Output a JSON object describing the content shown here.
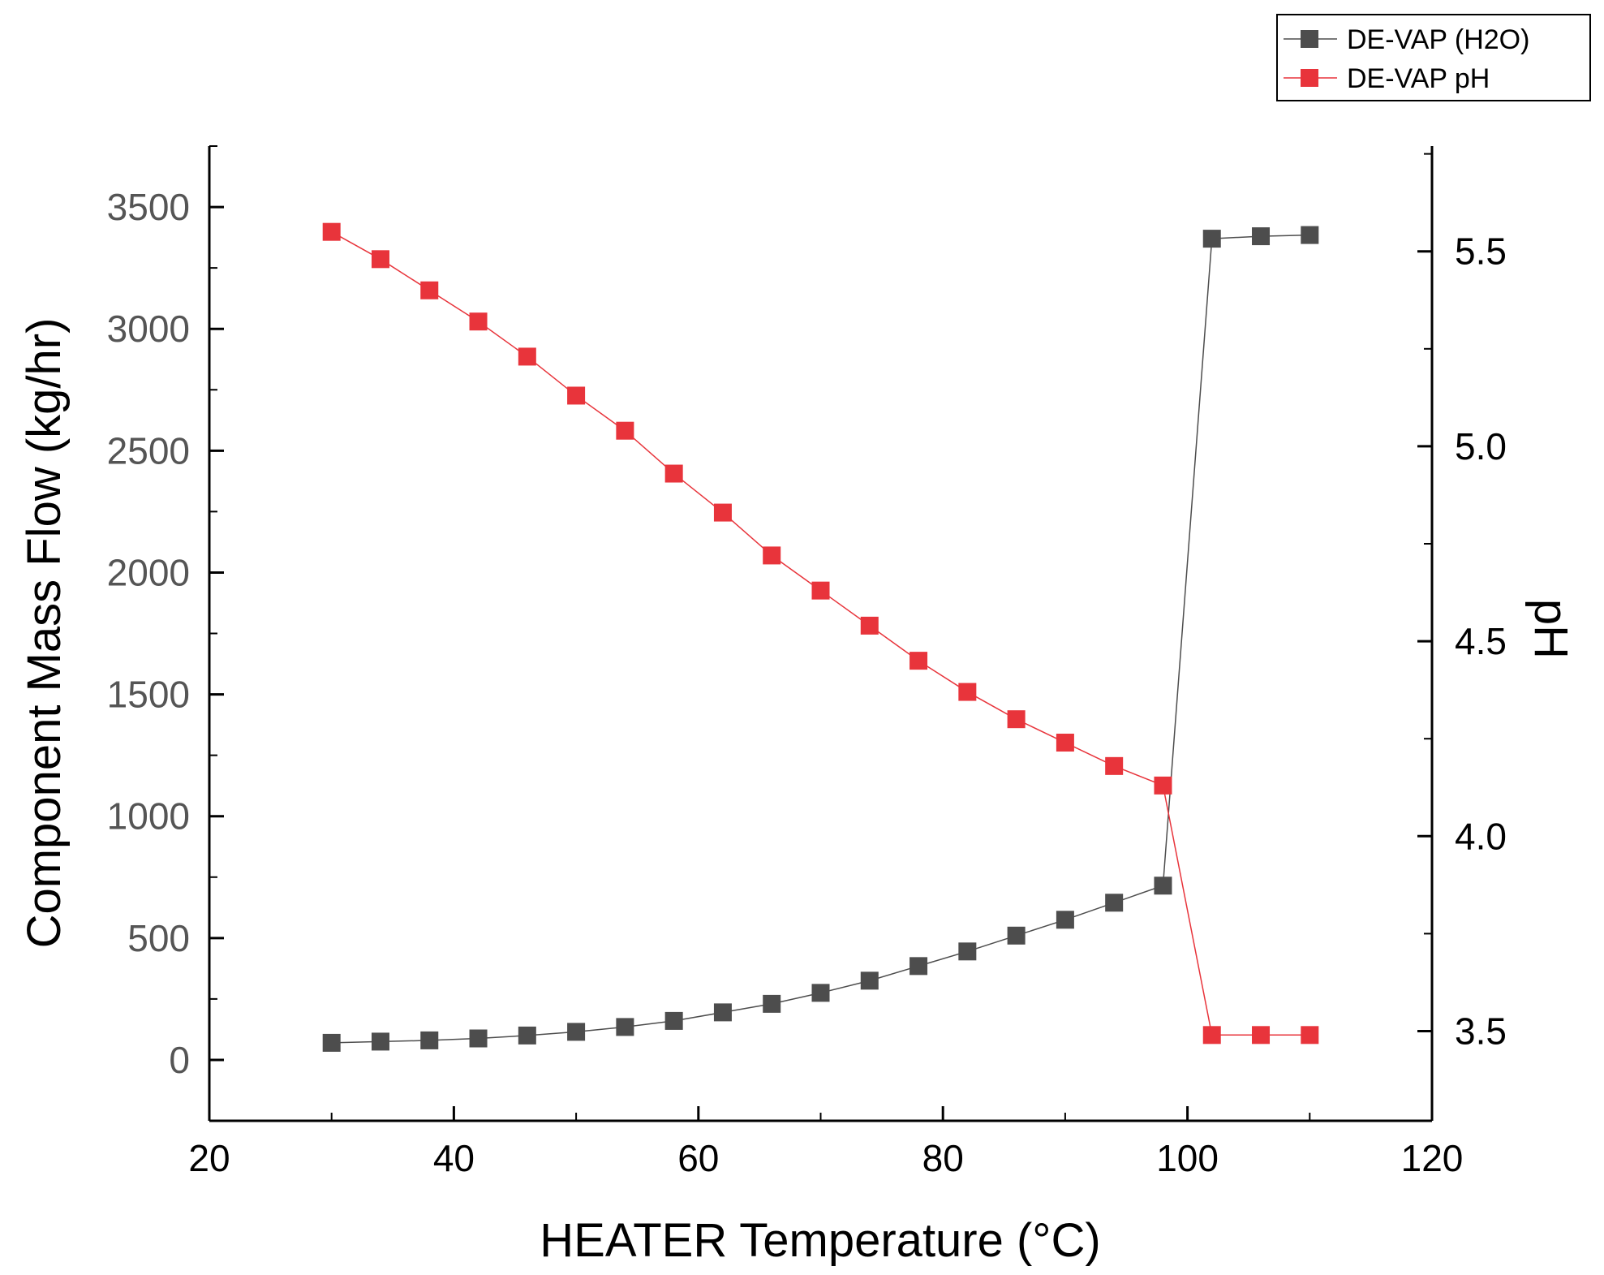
{
  "chart_data": {
    "type": "line",
    "title": "",
    "xlabel": "HEATER Temperature (°C)",
    "ylabel_left": "Component Mass Flow (kg/hr)",
    "ylabel_right": "pH",
    "xlim": [
      20,
      120
    ],
    "ylim_left": [
      -250,
      3750
    ],
    "ylim_right": [
      3.27,
      5.77
    ],
    "x_ticks": [
      20,
      40,
      60,
      80,
      100,
      120
    ],
    "y_left_ticks": [
      0,
      500,
      1000,
      1500,
      2000,
      2500,
      3000,
      3500
    ],
    "y_right_ticks": [
      3.5,
      4.0,
      4.5,
      5.0,
      5.5
    ],
    "y_right_tick_labels": [
      "3.5",
      "4.0",
      "4.5",
      "5.0",
      "5.5"
    ],
    "grid": false,
    "legend_position": "top-right",
    "x": [
      30,
      34,
      38,
      42,
      46,
      50,
      54,
      58,
      62,
      66,
      70,
      74,
      78,
      82,
      86,
      90,
      94,
      98,
      102,
      106,
      110
    ],
    "series": [
      {
        "name": "DE-VAP (H2O)",
        "axis": "left",
        "color": "#4d4d4d",
        "marker": "square",
        "values": [
          70,
          75,
          80,
          88,
          100,
          115,
          135,
          160,
          195,
          230,
          275,
          325,
          385,
          445,
          510,
          575,
          645,
          715,
          3370,
          3380,
          3385
        ]
      },
      {
        "name": "DE-VAP pH",
        "axis": "right",
        "color": "#e8343b",
        "marker": "square",
        "values": [
          5.55,
          5.48,
          5.4,
          5.32,
          5.23,
          5.13,
          5.04,
          4.93,
          4.83,
          4.72,
          4.63,
          4.54,
          4.45,
          4.37,
          4.3,
          4.24,
          4.18,
          4.13,
          3.49,
          3.49,
          3.49
        ]
      }
    ]
  }
}
